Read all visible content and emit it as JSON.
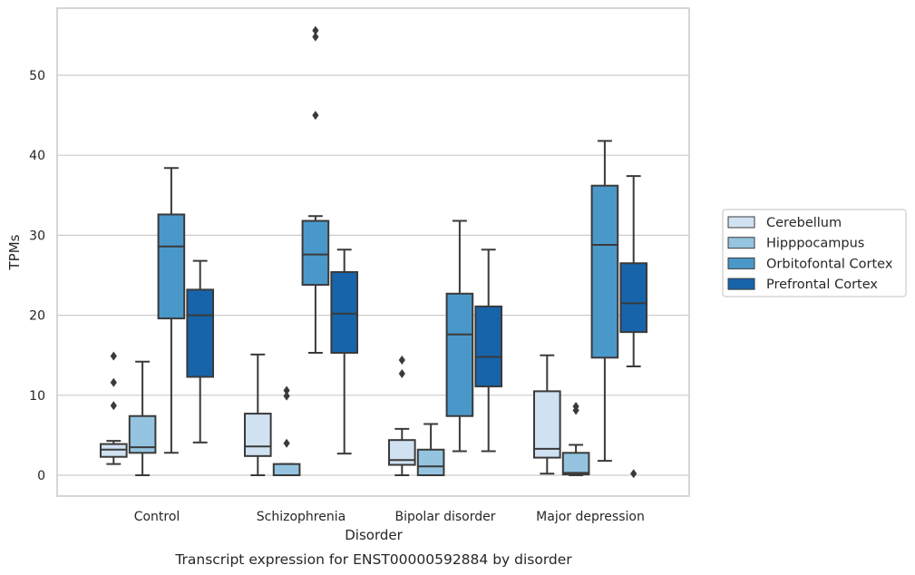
{
  "chart_data": {
    "type": "box",
    "title": "",
    "caption": "Transcript expression for ENST00000592884 by disorder",
    "xlabel": "Disorder",
    "ylabel": "TPMs",
    "ylim": [
      -2.7,
      58.7
    ],
    "yticks": [
      0,
      10,
      20,
      30,
      40,
      50
    ],
    "grid": "horizontal",
    "legend_position": "right",
    "categories": [
      "Control",
      "Schizophrenia",
      "Bipolar disorder",
      "Major depression"
    ],
    "series": [
      {
        "name": "Cerebellum",
        "color": "#d0e1f2",
        "boxes": [
          {
            "whisker_low": 1.4,
            "q1": 2.3,
            "median": 3.2,
            "q3": 3.9,
            "whisker_high": 4.3,
            "outliers": [
              8.7,
              11.6,
              14.9
            ]
          },
          {
            "whisker_low": 0.0,
            "q1": 2.4,
            "median": 3.6,
            "q3": 7.7,
            "whisker_high": 15.1,
            "outliers": []
          },
          {
            "whisker_low": 0.0,
            "q1": 1.3,
            "median": 1.9,
            "q3": 4.4,
            "whisker_high": 5.8,
            "outliers": [
              12.7,
              14.4
            ]
          },
          {
            "whisker_low": 0.2,
            "q1": 2.2,
            "median": 3.3,
            "q3": 10.5,
            "whisker_high": 15.0,
            "outliers": []
          }
        ]
      },
      {
        "name": "Hipppocampus",
        "color": "#94c4df",
        "boxes": [
          {
            "whisker_low": 0.0,
            "q1": 2.8,
            "median": 3.5,
            "q3": 7.4,
            "whisker_high": 14.2,
            "outliers": []
          },
          {
            "whisker_low": 0.0,
            "q1": 0.0,
            "median": 0.0,
            "q3": 1.4,
            "whisker_high": 1.4,
            "outliers": [
              4.0,
              9.9,
              10.6
            ]
          },
          {
            "whisker_low": 0.0,
            "q1": 0.0,
            "median": 1.1,
            "q3": 3.2,
            "whisker_high": 6.4,
            "outliers": []
          },
          {
            "whisker_low": 0.0,
            "q1": 0.1,
            "median": 0.3,
            "q3": 2.8,
            "whisker_high": 3.8,
            "outliers": [
              8.1,
              8.6
            ]
          }
        ]
      },
      {
        "name": "Orbitofontal Cortex",
        "color": "#4a98c9",
        "boxes": [
          {
            "whisker_low": 2.8,
            "q1": 19.6,
            "median": 28.6,
            "q3": 32.6,
            "whisker_high": 38.4,
            "outliers": []
          },
          {
            "whisker_low": 15.3,
            "q1": 23.8,
            "median": 27.6,
            "q3": 31.8,
            "whisker_high": 32.4,
            "outliers": [
              45.0,
              54.8,
              55.6
            ]
          },
          {
            "whisker_low": 3.0,
            "q1": 7.4,
            "median": 17.6,
            "q3": 22.7,
            "whisker_high": 31.8,
            "outliers": []
          },
          {
            "whisker_low": 1.8,
            "q1": 14.7,
            "median": 28.8,
            "q3": 36.2,
            "whisker_high": 41.8,
            "outliers": []
          }
        ]
      },
      {
        "name": "Prefrontal Cortex",
        "color": "#1764ab",
        "boxes": [
          {
            "whisker_low": 4.1,
            "q1": 12.3,
            "median": 20.0,
            "q3": 23.2,
            "whisker_high": 26.8,
            "outliers": []
          },
          {
            "whisker_low": 2.7,
            "q1": 15.3,
            "median": 20.2,
            "q3": 25.4,
            "whisker_high": 28.2,
            "outliers": []
          },
          {
            "whisker_low": 3.0,
            "q1": 11.1,
            "median": 14.8,
            "q3": 21.1,
            "whisker_high": 28.2,
            "outliers": []
          },
          {
            "whisker_low": 13.6,
            "q1": 17.9,
            "median": 21.5,
            "q3": 26.5,
            "whisker_high": 37.4,
            "outliers": [
              0.2
            ]
          }
        ]
      }
    ]
  }
}
